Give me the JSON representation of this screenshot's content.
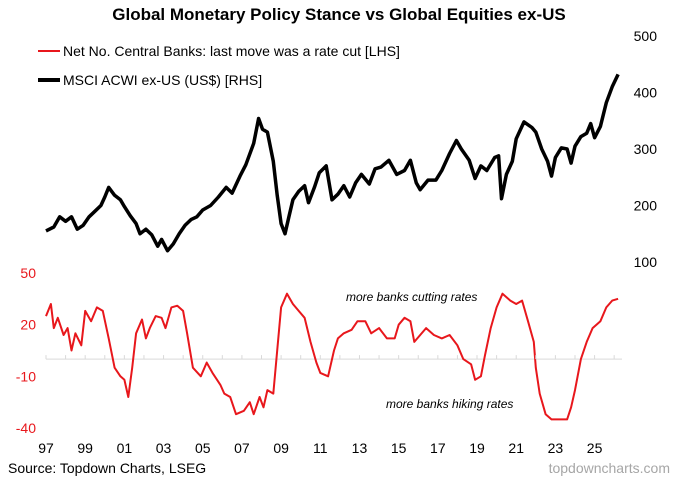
{
  "chart_data": {
    "type": "line",
    "title": "Global Monetary Policy Stance vs Global Equities ex-US",
    "source": "Source: Topdown Charts, LSEG",
    "brand": "topdowncharts.com",
    "x_tick_labels": [
      "97",
      "99",
      "01",
      "03",
      "05",
      "07",
      "09",
      "11",
      "13",
      "15",
      "17",
      "19",
      "21",
      "23",
      "25"
    ],
    "x_range": [
      1997,
      2026.4
    ],
    "legend": {
      "placement": "top-left",
      "entries": [
        {
          "label": "Net No. Central Banks: last move was a rate cut [LHS]",
          "color": "#e8171c"
        },
        {
          "label": "MSCI ACWI ex-US (US$) [RHS]",
          "color": "#000000"
        }
      ]
    },
    "annotations": {
      "cutting": "more banks cutting rates",
      "hiking": "more banks hiking rates"
    },
    "right_axis": {
      "ticks": [
        "500",
        "400",
        "300",
        "200",
        "100"
      ],
      "range": [
        100,
        500
      ]
    },
    "left_axis": {
      "ticks": [
        "50",
        "20",
        "-10",
        "-40"
      ],
      "range": [
        -40,
        50
      ],
      "zero_line": true
    },
    "series": [
      {
        "name": "MSCI ACWI ex-US (US$) [RHS]",
        "color": "#000000",
        "axis": "right",
        "points": [
          [
            1997.0,
            155
          ],
          [
            1997.4,
            162
          ],
          [
            1997.7,
            180
          ],
          [
            1998.0,
            172
          ],
          [
            1998.3,
            180
          ],
          [
            1998.6,
            158
          ],
          [
            1998.9,
            165
          ],
          [
            1999.2,
            180
          ],
          [
            1999.5,
            190
          ],
          [
            1999.8,
            200
          ],
          [
            2000.0,
            215
          ],
          [
            2000.2,
            232
          ],
          [
            2000.5,
            218
          ],
          [
            2000.8,
            210
          ],
          [
            2001.0,
            198
          ],
          [
            2001.3,
            182
          ],
          [
            2001.6,
            168
          ],
          [
            2001.8,
            150
          ],
          [
            2002.1,
            158
          ],
          [
            2002.4,
            148
          ],
          [
            2002.7,
            128
          ],
          [
            2002.9,
            140
          ],
          [
            2003.2,
            120
          ],
          [
            2003.5,
            132
          ],
          [
            2003.8,
            150
          ],
          [
            2004.1,
            165
          ],
          [
            2004.4,
            175
          ],
          [
            2004.7,
            180
          ],
          [
            2005.0,
            192
          ],
          [
            2005.4,
            200
          ],
          [
            2005.8,
            215
          ],
          [
            2006.2,
            232
          ],
          [
            2006.5,
            222
          ],
          [
            2006.9,
            252
          ],
          [
            2007.2,
            272
          ],
          [
            2007.6,
            310
          ],
          [
            2007.85,
            354
          ],
          [
            2008.05,
            335
          ],
          [
            2008.3,
            330
          ],
          [
            2008.6,
            278
          ],
          [
            2008.8,
            218
          ],
          [
            2009.0,
            168
          ],
          [
            2009.2,
            150
          ],
          [
            2009.4,
            180
          ],
          [
            2009.6,
            210
          ],
          [
            2009.9,
            225
          ],
          [
            2010.2,
            235
          ],
          [
            2010.4,
            205
          ],
          [
            2010.7,
            232
          ],
          [
            2010.95,
            258
          ],
          [
            2011.3,
            270
          ],
          [
            2011.6,
            210
          ],
          [
            2011.9,
            220
          ],
          [
            2012.2,
            235
          ],
          [
            2012.5,
            215
          ],
          [
            2012.8,
            240
          ],
          [
            2013.1,
            255
          ],
          [
            2013.5,
            238
          ],
          [
            2013.8,
            265
          ],
          [
            2014.1,
            268
          ],
          [
            2014.5,
            280
          ],
          [
            2014.9,
            255
          ],
          [
            2015.3,
            262
          ],
          [
            2015.6,
            280
          ],
          [
            2015.9,
            240
          ],
          [
            2016.1,
            228
          ],
          [
            2016.5,
            245
          ],
          [
            2016.9,
            245
          ],
          [
            2017.2,
            262
          ],
          [
            2017.6,
            292
          ],
          [
            2017.95,
            315
          ],
          [
            2018.2,
            300
          ],
          [
            2018.6,
            280
          ],
          [
            2018.9,
            248
          ],
          [
            2019.2,
            270
          ],
          [
            2019.5,
            262
          ],
          [
            2019.9,
            285
          ],
          [
            2020.1,
            288
          ],
          [
            2020.25,
            212
          ],
          [
            2020.5,
            255
          ],
          [
            2020.8,
            278
          ],
          [
            2021.0,
            318
          ],
          [
            2021.4,
            348
          ],
          [
            2021.8,
            338
          ],
          [
            2022.0,
            330
          ],
          [
            2022.3,
            300
          ],
          [
            2022.6,
            278
          ],
          [
            2022.8,
            252
          ],
          [
            2023.0,
            285
          ],
          [
            2023.3,
            302
          ],
          [
            2023.6,
            300
          ],
          [
            2023.8,
            275
          ],
          [
            2024.0,
            305
          ],
          [
            2024.3,
            322
          ],
          [
            2024.6,
            328
          ],
          [
            2024.8,
            345
          ],
          [
            2025.0,
            320
          ],
          [
            2025.3,
            340
          ],
          [
            2025.6,
            382
          ],
          [
            2025.9,
            410
          ],
          [
            2026.2,
            432
          ]
        ]
      },
      {
        "name": "Net No. Central Banks: last move was a rate cut [LHS]",
        "color": "#e8171c",
        "axis": "left",
        "points": [
          [
            1997.0,
            25
          ],
          [
            1997.25,
            32
          ],
          [
            1997.4,
            18
          ],
          [
            1997.6,
            24
          ],
          [
            1997.9,
            14
          ],
          [
            1998.1,
            18
          ],
          [
            1998.3,
            5
          ],
          [
            1998.5,
            15
          ],
          [
            1998.8,
            8
          ],
          [
            1999.0,
            28
          ],
          [
            1999.3,
            22
          ],
          [
            1999.6,
            30
          ],
          [
            1999.9,
            28
          ],
          [
            2000.2,
            12
          ],
          [
            2000.5,
            -5
          ],
          [
            2000.8,
            -10
          ],
          [
            2001.0,
            -12
          ],
          [
            2001.2,
            -22
          ],
          [
            2001.4,
            -5
          ],
          [
            2001.6,
            15
          ],
          [
            2001.9,
            23
          ],
          [
            2002.1,
            12
          ],
          [
            2002.3,
            18
          ],
          [
            2002.6,
            25
          ],
          [
            2002.9,
            24
          ],
          [
            2003.1,
            18
          ],
          [
            2003.4,
            30
          ],
          [
            2003.7,
            31
          ],
          [
            2004.0,
            28
          ],
          [
            2004.2,
            15
          ],
          [
            2004.5,
            -5
          ],
          [
            2004.9,
            -10
          ],
          [
            2005.2,
            -2
          ],
          [
            2005.5,
            -8
          ],
          [
            2005.9,
            -15
          ],
          [
            2006.1,
            -20
          ],
          [
            2006.4,
            -22
          ],
          [
            2006.7,
            -32
          ],
          [
            2007.1,
            -30
          ],
          [
            2007.4,
            -25
          ],
          [
            2007.6,
            -32
          ],
          [
            2007.9,
            -22
          ],
          [
            2008.1,
            -28
          ],
          [
            2008.3,
            -18
          ],
          [
            2008.6,
            -20
          ],
          [
            2008.8,
            5
          ],
          [
            2009.0,
            30
          ],
          [
            2009.3,
            38
          ],
          [
            2009.6,
            32
          ],
          [
            2009.9,
            28
          ],
          [
            2010.2,
            24
          ],
          [
            2010.5,
            10
          ],
          [
            2010.8,
            -2
          ],
          [
            2011.0,
            -8
          ],
          [
            2011.4,
            -10
          ],
          [
            2011.7,
            5
          ],
          [
            2011.9,
            12
          ],
          [
            2012.2,
            15
          ],
          [
            2012.6,
            17
          ],
          [
            2012.9,
            22
          ],
          [
            2013.3,
            22
          ],
          [
            2013.6,
            15
          ],
          [
            2014.0,
            18
          ],
          [
            2014.4,
            12
          ],
          [
            2014.8,
            12
          ],
          [
            2015.0,
            20
          ],
          [
            2015.3,
            24
          ],
          [
            2015.6,
            22
          ],
          [
            2015.8,
            10
          ],
          [
            2016.1,
            14
          ],
          [
            2016.4,
            18
          ],
          [
            2016.8,
            14
          ],
          [
            2017.2,
            12
          ],
          [
            2017.6,
            14
          ],
          [
            2018.0,
            8
          ],
          [
            2018.3,
            0
          ],
          [
            2018.7,
            -3
          ],
          [
            2018.9,
            -12
          ],
          [
            2019.2,
            -10
          ],
          [
            2019.4,
            2
          ],
          [
            2019.7,
            18
          ],
          [
            2020.0,
            30
          ],
          [
            2020.3,
            38
          ],
          [
            2020.7,
            34
          ],
          [
            2021.0,
            32
          ],
          [
            2021.3,
            34
          ],
          [
            2021.6,
            22
          ],
          [
            2021.9,
            10
          ],
          [
            2022.0,
            -5
          ],
          [
            2022.2,
            -20
          ],
          [
            2022.5,
            -32
          ],
          [
            2022.8,
            -35
          ],
          [
            2023.2,
            -35
          ],
          [
            2023.6,
            -35
          ],
          [
            2023.8,
            -28
          ],
          [
            2024.0,
            -18
          ],
          [
            2024.3,
            0
          ],
          [
            2024.6,
            10
          ],
          [
            2024.9,
            18
          ],
          [
            2025.3,
            22
          ],
          [
            2025.6,
            30
          ],
          [
            2025.9,
            34
          ],
          [
            2026.2,
            35
          ]
        ]
      }
    ]
  }
}
